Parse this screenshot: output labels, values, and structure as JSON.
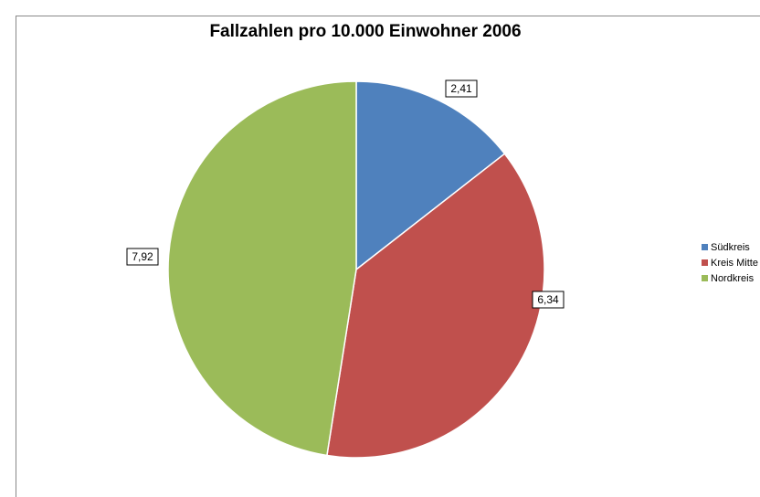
{
  "chart_data": {
    "type": "pie",
    "title": "Fallzahlen pro 10.000 Einwohner 2006",
    "categories": [
      "Südkreis",
      "Kreis Mitte",
      "Nordkreis"
    ],
    "values": [
      2.41,
      6.34,
      7.92
    ],
    "value_labels": [
      "2,41",
      "6,34",
      "7,92"
    ],
    "colors": [
      "#4f81bd",
      "#c0504d",
      "#9bbb59"
    ],
    "legend": "right"
  }
}
